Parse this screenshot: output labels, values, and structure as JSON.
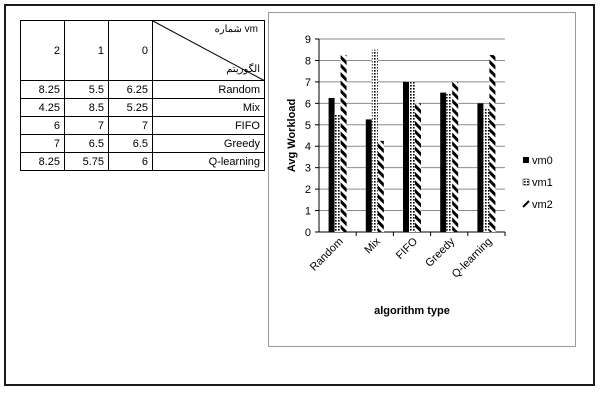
{
  "table": {
    "header_vm": "شماره vm",
    "header_algo": "الگوریتم",
    "columns": [
      "2",
      "1",
      "0"
    ],
    "rows": [
      {
        "name": "Random",
        "values": [
          "8.25",
          "5.5",
          "6.25"
        ]
      },
      {
        "name": "Mix",
        "values": [
          "4.25",
          "8.5",
          "5.25"
        ]
      },
      {
        "name": "FIFO",
        "values": [
          "6",
          "7",
          "7"
        ]
      },
      {
        "name": "Greedy",
        "values": [
          "7",
          "6.5",
          "6.5"
        ]
      },
      {
        "name": "Q-learning",
        "values": [
          "8.25",
          "5.75",
          "6"
        ]
      }
    ]
  },
  "chart_data": {
    "type": "bar",
    "categories": [
      "Random",
      "Mix",
      "FIFO",
      "Greedy",
      "Q-learning"
    ],
    "series": [
      {
        "name": "vm0",
        "values": [
          6.25,
          5.25,
          7,
          6.5,
          6
        ],
        "pattern": "solid"
      },
      {
        "name": "vm1",
        "values": [
          5.5,
          8.5,
          7,
          6.5,
          5.75
        ],
        "pattern": "dots"
      },
      {
        "name": "vm2",
        "values": [
          8.25,
          4.25,
          6,
          7,
          8.25
        ],
        "pattern": "diagonal"
      }
    ],
    "xlabel": "algorithm type",
    "ylabel": "Avg Workload",
    "ylim": [
      0,
      9
    ],
    "yticks": [
      0,
      1,
      2,
      3,
      4,
      5,
      6,
      7,
      8,
      9
    ],
    "grid": true,
    "legend": "right",
    "colors": {
      "bar": "#000000",
      "grid": "#8c8c8c"
    }
  }
}
